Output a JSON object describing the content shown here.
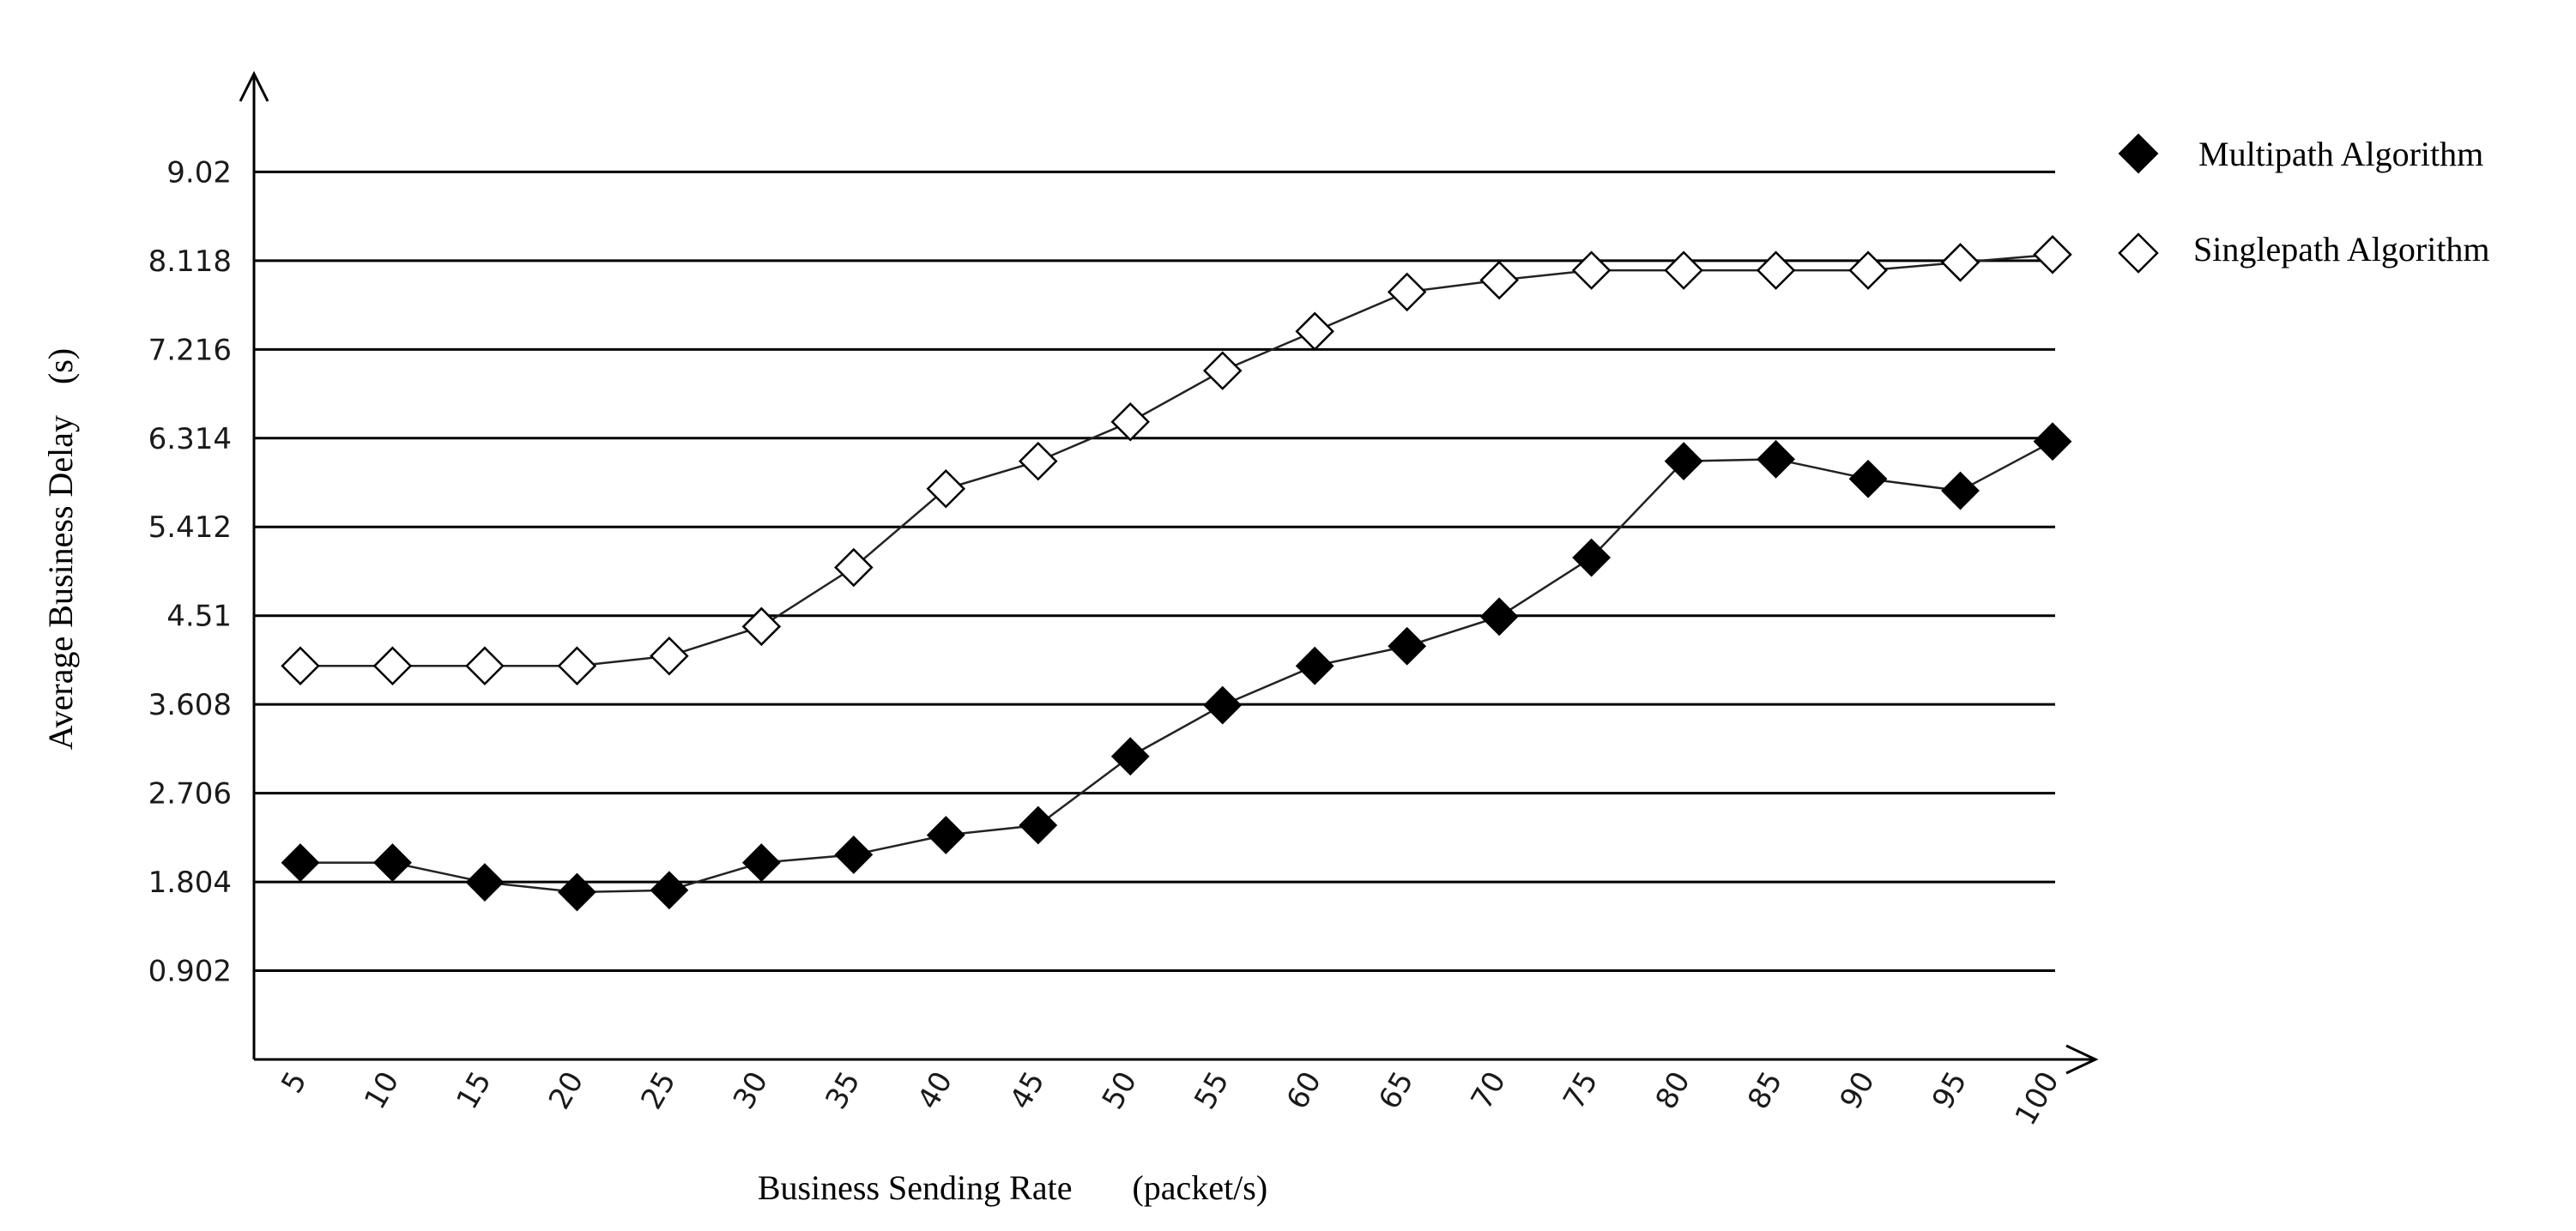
{
  "chart_data": {
    "type": "line",
    "title": "",
    "xlabel": "Business Sending Rate",
    "xlabel_unit": "(packet/s)",
    "ylabel": "Average Business Delay",
    "ylabel_unit": "(s)",
    "categories": [
      5,
      10,
      15,
      20,
      25,
      30,
      35,
      40,
      45,
      50,
      55,
      60,
      65,
      70,
      75,
      80,
      85,
      90,
      95,
      100
    ],
    "yticks": [
      "0.902",
      "1.804",
      "2.706",
      "3.608",
      "4.51",
      "5.412",
      "6.314",
      "7.216",
      "8.118",
      "9.02"
    ],
    "ytick_values": [
      0.902,
      1.804,
      2.706,
      3.608,
      4.51,
      5.412,
      6.314,
      7.216,
      8.118,
      9.02
    ],
    "ylim": [
      0,
      10.0
    ],
    "grid": "horizontal",
    "legend_position": "right",
    "series": [
      {
        "name": "Multipath Algorithm",
        "marker": "filled-diamond",
        "color": "#000000",
        "values": [
          2.0,
          2.0,
          1.8,
          1.7,
          1.72,
          2.0,
          2.08,
          2.28,
          2.38,
          3.08,
          3.6,
          4.0,
          4.2,
          4.5,
          5.1,
          6.08,
          6.1,
          5.9,
          5.78,
          6.28
        ]
      },
      {
        "name": "Singlepath Algorithm",
        "marker": "hollow-diamond",
        "color": "#000000",
        "values": [
          4.0,
          4.0,
          4.0,
          4.0,
          4.1,
          4.4,
          5.0,
          5.8,
          6.08,
          6.48,
          7.0,
          7.4,
          7.8,
          7.92,
          8.02,
          8.02,
          8.02,
          8.02,
          8.1,
          8.18
        ]
      }
    ]
  }
}
